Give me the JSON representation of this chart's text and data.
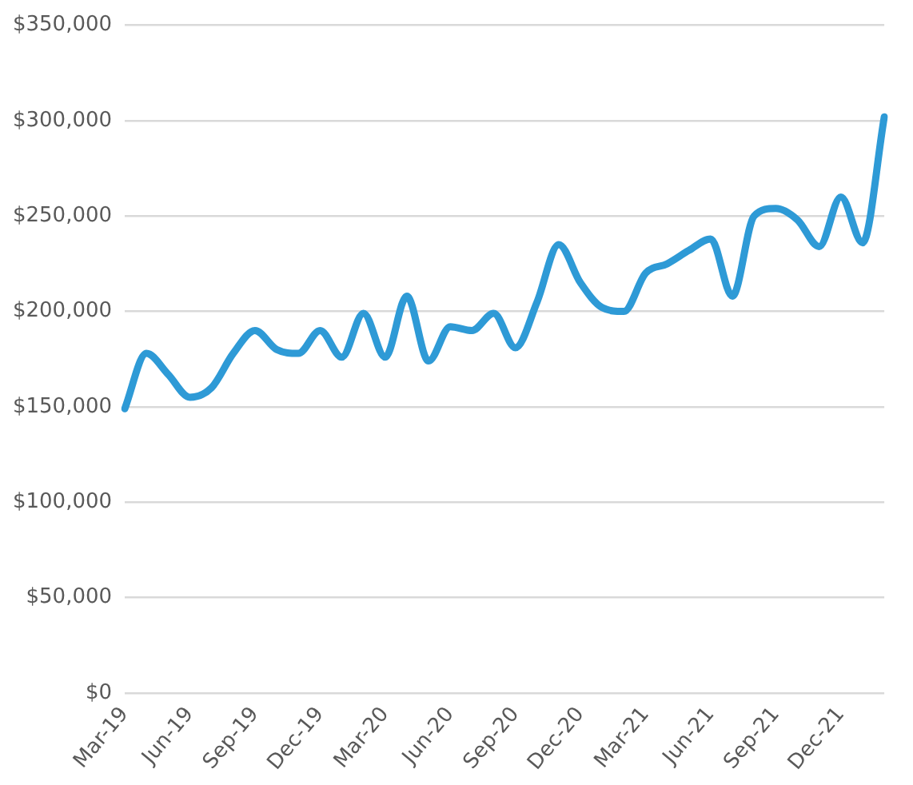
{
  "chart_data": {
    "type": "line",
    "categories": [
      "Mar-19",
      null,
      null,
      "Jun-19",
      null,
      null,
      "Sep-19",
      null,
      null,
      "Dec-19",
      null,
      null,
      "Mar-20",
      null,
      null,
      "Jun-20",
      null,
      null,
      "Sep-20",
      null,
      null,
      "Dec-20",
      null,
      null,
      "Mar-21",
      null,
      null,
      "Jun-21",
      null,
      null,
      "Sep-21",
      null,
      null,
      "Dec-21",
      null,
      null
    ],
    "series": [
      {
        "color": "#2e9ad6",
        "values": [
          149000,
          178000,
          167000,
          155000,
          160000,
          178000,
          190000,
          180000,
          178000,
          190000,
          176000,
          199000,
          176000,
          208000,
          174000,
          192000,
          190000,
          199000,
          181000,
          205000,
          235000,
          215000,
          202000,
          200000,
          220000,
          225000,
          232000,
          238000,
          208000,
          250000,
          254000,
          248000,
          234000,
          260000,
          236000,
          302000
        ]
      }
    ],
    "ylim": [
      0,
      350000
    ],
    "yticks": [
      {
        "value": 0,
        "label": "$0"
      },
      {
        "value": 50000,
        "label": "$50,000"
      },
      {
        "value": 100000,
        "label": "$100,000"
      },
      {
        "value": 150000,
        "label": "$150,000"
      },
      {
        "value": 200000,
        "label": "$200,000"
      },
      {
        "value": 250000,
        "label": "$250,000"
      },
      {
        "value": 300000,
        "label": "$300,000"
      },
      {
        "value": 350000,
        "label": "$350,000"
      }
    ],
    "grid": "y",
    "legend": false,
    "marker": "none",
    "line_style": "solid"
  }
}
